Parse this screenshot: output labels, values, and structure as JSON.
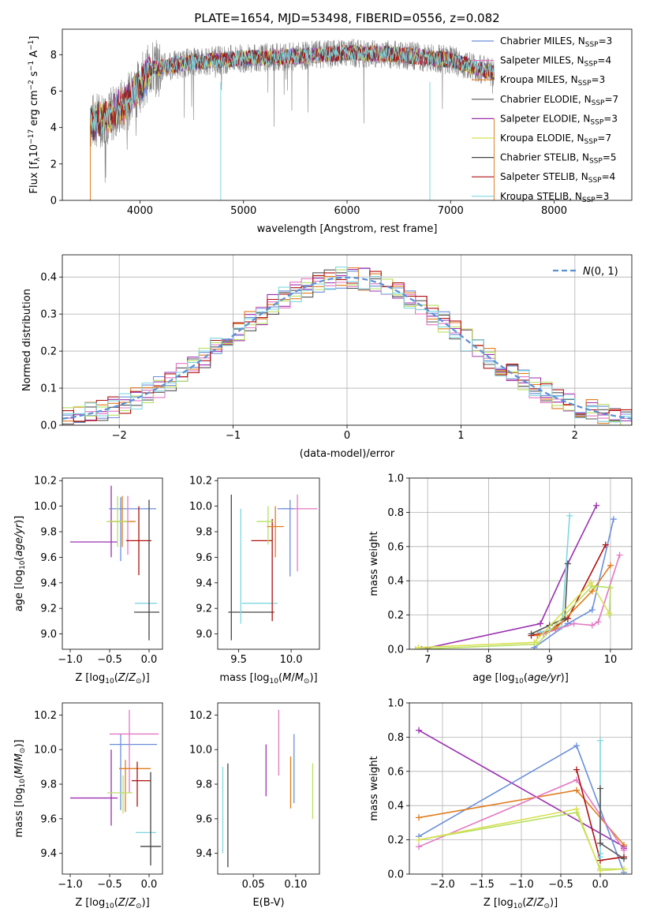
{
  "title": "PLATE=1654, MJD=53498, FIBERID=0556, z=0.082",
  "colors": [
    "#6a8fdb",
    "#9b30b0",
    "#e07c1e",
    "#555555",
    "#9b30b0",
    "#b8e060",
    "#555555",
    "#b01010",
    "#7fd6e0"
  ],
  "chart_data": [
    {
      "name": "spectrum",
      "type": "line",
      "xlabel": "wavelength [Angstrom, rest frame]",
      "ylabel": "Flux [f_λ 10^-17 erg cm^-2 s^-1 A^-1]",
      "xlim": [
        3250,
        8750
      ],
      "ylim": [
        0,
        9.4
      ],
      "xticks": [
        4000,
        5000,
        6000,
        7000,
        8000
      ],
      "yticks": [
        0,
        2,
        4,
        6,
        8
      ],
      "grid": false,
      "legend_position": "right",
      "legend": [
        {
          "label": "Chabrier MILES, N",
          "sub": "SSP",
          "eq": "=3",
          "color": "#6a8fdb"
        },
        {
          "label": "Salpeter MILES, N",
          "sub": "SSP",
          "eq": "=4",
          "color": "#e377c2"
        },
        {
          "label": "Kroupa MILES, N",
          "sub": "SSP",
          "eq": "=3",
          "color": "#e07c1e"
        },
        {
          "label": "Chabrier ELODIE, N",
          "sub": "SSP",
          "eq": "=7",
          "color": "#555555"
        },
        {
          "label": "Salpeter ELODIE, N",
          "sub": "SSP",
          "eq": "=3",
          "color": "#9b30b0"
        },
        {
          "label": "Kroupa ELODIE, N",
          "sub": "SSP",
          "eq": "=7",
          "color": "#d8e050"
        },
        {
          "label": "Chabrier STELIB, N",
          "sub": "SSP",
          "eq": "=5",
          "color": "#444444"
        },
        {
          "label": "Salpeter STELIB, N",
          "sub": "SSP",
          "eq": "=4",
          "color": "#b01010"
        },
        {
          "label": "Kroupa STELIB, N",
          "sub": "SSP",
          "eq": "=3",
          "color": "#7fd6e0"
        }
      ],
      "data_range": [
        3520,
        7420
      ],
      "continuum": [
        [
          3520,
          4.3
        ],
        [
          3700,
          4.6
        ],
        [
          3900,
          5.5
        ],
        [
          4100,
          7.2
        ],
        [
          4500,
          7.6
        ],
        [
          5000,
          7.8
        ],
        [
          5500,
          7.9
        ],
        [
          6000,
          8.1
        ],
        [
          6500,
          8.0
        ],
        [
          7000,
          7.7
        ],
        [
          7420,
          7.0
        ]
      ]
    },
    {
      "name": "residuals",
      "type": "histogram",
      "xlabel": "(data-model)/error",
      "ylabel": "Normed distribution",
      "xlim": [
        -2.5,
        2.5
      ],
      "ylim": [
        0,
        0.46
      ],
      "xticks": [
        -2,
        -1,
        0,
        1,
        2
      ],
      "yticks": [
        0.0,
        0.1,
        0.2,
        0.3,
        0.4
      ],
      "grid": true,
      "legend_position": "top-right",
      "legend": "N(0,1)",
      "bin_width": 0.1,
      "colors": [
        "#6a8fdb",
        "#9b30b0",
        "#e07c1e",
        "#555555",
        "#e377c2",
        "#b8e060",
        "#b01010",
        "#7fd6e0"
      ]
    },
    {
      "name": "age_vs_Z",
      "type": "errorbar",
      "xlabel": "Z [log10(Z/Z⊙)]",
      "ylabel": "age  [log10(age/yr)]",
      "xlim": [
        -1.1,
        0.17
      ],
      "ylim": [
        8.88,
        10.22
      ],
      "xticks": [
        -1.0,
        -0.5,
        0.0
      ],
      "yticks": [
        9.0,
        9.2,
        9.4,
        9.6,
        9.8,
        10.0,
        10.2
      ],
      "points": [
        {
          "x": -0.7,
          "xerr": 0.3,
          "y": 9.72,
          "yerr": 0.0,
          "color": "#9b30b0"
        },
        {
          "x": -0.48,
          "xerr": 0.0,
          "y": 9.88,
          "yerr": 0.28,
          "color": "#9b30b0"
        },
        {
          "x": -0.21,
          "xerr": 0.3,
          "y": 9.98,
          "yerr": 0.0,
          "color": "#6a8fdb"
        },
        {
          "x": -0.36,
          "xerr": 0.0,
          "y": 9.82,
          "yerr": 0.25,
          "color": "#6a8fdb"
        },
        {
          "x": -0.34,
          "xerr": 0.17,
          "y": 9.88,
          "yerr": 0.2,
          "color": "#e07c1e"
        },
        {
          "x": -0.4,
          "xerr": 0.14,
          "y": 9.88,
          "yerr": 0.2,
          "color": "#b8e060"
        },
        {
          "x": -0.27,
          "xerr": 0.0,
          "y": 9.85,
          "yerr": 0.23,
          "color": "#e377c2"
        },
        {
          "x": -0.13,
          "xerr": 0.16,
          "y": 9.73,
          "yerr": 0.27,
          "color": "#b01010"
        },
        {
          "x": -0.04,
          "xerr": 0.14,
          "y": 9.24,
          "yerr": 0.0,
          "color": "#7fd6e0"
        },
        {
          "x": 0.0,
          "xerr": 0.0,
          "y": 9.5,
          "yerr": 0.55,
          "color": "#444444"
        },
        {
          "x": -0.03,
          "xerr": 0.16,
          "y": 9.17,
          "yerr": 0.0,
          "color": "#444444"
        }
      ]
    },
    {
      "name": "age_vs_mass",
      "type": "errorbar",
      "xlabel": "mass [log10(M/M⊙)]",
      "xlim": [
        9.3,
        10.27
      ],
      "ylim": [
        8.88,
        10.22
      ],
      "xticks": [
        9.5,
        10.0
      ],
      "yticks": [
        9.0,
        9.2,
        9.4,
        9.6,
        9.8,
        10.0,
        10.2
      ],
      "points": [
        {
          "x": 9.43,
          "xerr": 0.0,
          "y": 9.52,
          "yerr": 0.57,
          "color": "#444444"
        },
        {
          "x": 9.62,
          "xerr": 0.22,
          "y": 9.17,
          "yerr": 0.0,
          "color": "#444444"
        },
        {
          "x": 9.52,
          "xerr": 0.0,
          "y": 9.53,
          "yerr": 0.45,
          "color": "#7fd6e0"
        },
        {
          "x": 9.7,
          "xerr": 0.17,
          "y": 9.24,
          "yerr": 0.0,
          "color": "#7fd6e0"
        },
        {
          "x": 9.82,
          "xerr": 0.0,
          "y": 9.5,
          "yerr": 0.4,
          "color": "#b01010"
        },
        {
          "x": 9.72,
          "xerr": 0.1,
          "y": 9.73,
          "yerr": 0.0,
          "color": "#b01010"
        },
        {
          "x": 9.75,
          "xerr": 0.08,
          "y": 9.88,
          "yerr": 0.0,
          "color": "#b8e060"
        },
        {
          "x": 9.78,
          "xerr": 0.0,
          "y": 9.85,
          "yerr": 0.15,
          "color": "#b8e060"
        },
        {
          "x": 9.85,
          "xerr": 0.08,
          "y": 9.84,
          "yerr": 0.0,
          "color": "#e07c1e"
        },
        {
          "x": 9.85,
          "xerr": 0.0,
          "y": 9.8,
          "yerr": 0.2,
          "color": "#e07c1e"
        },
        {
          "x": 9.99,
          "xerr": 0.0,
          "y": 9.75,
          "yerr": 0.3,
          "color": "#6a8fdb"
        },
        {
          "x": 10.06,
          "xerr": 0.0,
          "y": 9.79,
          "yerr": 0.3,
          "color": "#e377c2"
        },
        {
          "x": 10.08,
          "xerr": 0.17,
          "y": 9.98,
          "yerr": 0.0,
          "color": "#e377c2"
        },
        {
          "x": 9.95,
          "xerr": 0.08,
          "y": 9.98,
          "yerr": 0.0,
          "color": "#6a8fdb"
        }
      ]
    },
    {
      "name": "weights_vs_age",
      "type": "line",
      "xlabel": "age  [log10(age/yr)]",
      "ylabel": "mass weight",
      "xlim": [
        6.7,
        10.35
      ],
      "ylim": [
        0,
        1.0
      ],
      "xticks": [
        7,
        8,
        9,
        10
      ],
      "yticks": [
        0.0,
        0.2,
        0.4,
        0.6,
        0.8,
        1.0
      ],
      "grid": true,
      "series": [
        {
          "color": "#9b30b0",
          "x": [
            6.9,
            8.85,
            9.3,
            9.77
          ],
          "y": [
            0.0,
            0.15,
            0.5,
            0.84
          ]
        },
        {
          "color": "#6a8fdb",
          "x": [
            8.75,
            9.3,
            9.7,
            10.05
          ],
          "y": [
            0.01,
            0.15,
            0.23,
            0.76
          ]
        },
        {
          "color": "#b01010",
          "x": [
            8.7,
            8.95,
            9.3,
            9.92
          ],
          "y": [
            0.08,
            0.1,
            0.18,
            0.61
          ]
        },
        {
          "color": "#7fd6e0",
          "x": [
            8.85,
            9.2,
            9.33
          ],
          "y": [
            0.1,
            0.13,
            0.78
          ]
        },
        {
          "color": "#e07c1e",
          "x": [
            8.8,
            9.1,
            9.7,
            10.0
          ],
          "y": [
            0.08,
            0.12,
            0.34,
            0.49
          ]
        },
        {
          "color": "#e377c2",
          "x": [
            8.9,
            9.4,
            9.7,
            9.8,
            10.15
          ],
          "y": [
            0.09,
            0.15,
            0.14,
            0.16,
            0.55
          ]
        },
        {
          "color": "#555555",
          "x": [
            8.7,
            9.0,
            9.25,
            9.3
          ],
          "y": [
            0.09,
            0.14,
            0.18,
            0.5
          ]
        },
        {
          "color": "#b8e060",
          "x": [
            6.8,
            8.8,
            9.7,
            10.0,
            9.98
          ],
          "y": [
            0.0,
            0.03,
            0.37,
            0.36,
            0.2
          ]
        },
        {
          "color": "#d8e050",
          "x": [
            6.85,
            8.75,
            9.68,
            9.98
          ],
          "y": [
            0.01,
            0.04,
            0.39,
            0.21
          ]
        }
      ]
    },
    {
      "name": "mass_vs_Z",
      "type": "errorbar",
      "xlabel": "Z [log10(Z/Z⊙)]",
      "ylabel": "mass [log10(M/M⊙)]",
      "xlim": [
        -1.1,
        0.17
      ],
      "ylim": [
        9.28,
        10.27
      ],
      "xticks": [
        -1.0,
        -0.5,
        0.0
      ],
      "yticks": [
        9.4,
        9.6,
        9.8,
        10.0,
        10.2
      ],
      "points": [
        {
          "x": -0.7,
          "xerr": 0.3,
          "y": 9.72,
          "yerr": 0.0,
          "color": "#9b30b0"
        },
        {
          "x": -0.48,
          "xerr": 0.0,
          "y": 9.78,
          "yerr": 0.22,
          "color": "#9b30b0"
        },
        {
          "x": -0.2,
          "xerr": 0.3,
          "y": 10.03,
          "yerr": 0.0,
          "color": "#6a8fdb"
        },
        {
          "x": -0.36,
          "xerr": 0.0,
          "y": 9.87,
          "yerr": 0.22,
          "color": "#6a8fdb"
        },
        {
          "x": -0.19,
          "xerr": 0.31,
          "y": 10.09,
          "yerr": 0.0,
          "color": "#e377c2"
        },
        {
          "x": -0.25,
          "xerr": 0.0,
          "y": 9.99,
          "yerr": 0.24,
          "color": "#e377c2"
        },
        {
          "x": -0.18,
          "xerr": 0.2,
          "y": 9.89,
          "yerr": 0.0,
          "color": "#e07c1e"
        },
        {
          "x": -0.3,
          "xerr": 0.0,
          "y": 9.79,
          "yerr": 0.15,
          "color": "#e07c1e"
        },
        {
          "x": -0.37,
          "xerr": 0.16,
          "y": 9.75,
          "yerr": 0.0,
          "color": "#b8e060"
        },
        {
          "x": -0.33,
          "xerr": 0.0,
          "y": 9.74,
          "yerr": 0.11,
          "color": "#b8e060"
        },
        {
          "x": -0.1,
          "xerr": 0.12,
          "y": 9.82,
          "yerr": 0.0,
          "color": "#b01010"
        },
        {
          "x": -0.15,
          "xerr": 0.0,
          "y": 9.8,
          "yerr": 0.13,
          "color": "#b01010"
        },
        {
          "x": -0.04,
          "xerr": 0.13,
          "y": 9.52,
          "yerr": 0.0,
          "color": "#7fd6e0"
        },
        {
          "x": 0.02,
          "xerr": 0.13,
          "y": 9.44,
          "yerr": 0.0,
          "color": "#444444"
        },
        {
          "x": 0.02,
          "xerr": 0.0,
          "y": 9.6,
          "yerr": 0.27,
          "color": "#444444"
        }
      ]
    },
    {
      "name": "mass_vs_EBV",
      "type": "errorbar",
      "xlabel": "E(B-V)",
      "xlim": [
        0.008,
        0.128
      ],
      "ylim": [
        9.28,
        10.27
      ],
      "xticks": [
        0.05,
        0.1
      ],
      "yticks": [
        9.4,
        9.6,
        9.8,
        10.0,
        10.2
      ],
      "points": [
        {
          "x": 0.014,
          "xerr": 0.0,
          "y": 9.65,
          "yerr": 0.25,
          "color": "#7fd6e0"
        },
        {
          "x": 0.02,
          "xerr": 0.0,
          "y": 9.62,
          "yerr": 0.3,
          "color": "#444444"
        },
        {
          "x": 0.065,
          "xerr": 0.0,
          "y": 9.88,
          "yerr": 0.15,
          "color": "#9b30b0"
        },
        {
          "x": 0.08,
          "xerr": 0.0,
          "y": 10.04,
          "yerr": 0.19,
          "color": "#e377c2"
        },
        {
          "x": 0.094,
          "xerr": 0.0,
          "y": 9.81,
          "yerr": 0.15,
          "color": "#e07c1e"
        },
        {
          "x": 0.098,
          "xerr": 0.0,
          "y": 9.89,
          "yerr": 0.2,
          "color": "#6a8fdb"
        },
        {
          "x": 0.12,
          "xerr": 0.0,
          "y": 9.76,
          "yerr": 0.16,
          "color": "#b8e060"
        }
      ]
    },
    {
      "name": "weights_vs_Z",
      "type": "line",
      "xlabel": "Z [log10(Z/Z⊙)]",
      "ylabel": "mass weight",
      "xlim": [
        -2.42,
        0.4
      ],
      "ylim": [
        0,
        1.0
      ],
      "xticks": [
        -2.0,
        -1.5,
        -1.0,
        -0.5,
        0.0
      ],
      "yticks": [
        0.0,
        0.2,
        0.4,
        0.6,
        0.8,
        1.0
      ],
      "grid": true,
      "series": [
        {
          "color": "#9b30b0",
          "x": [
            -2.3,
            0.3,
            0.3
          ],
          "y": [
            0.84,
            0.16,
            0.15
          ]
        },
        {
          "color": "#6a8fdb",
          "x": [
            -2.3,
            -0.3,
            0.3
          ],
          "y": [
            0.22,
            0.75,
            0.01
          ]
        },
        {
          "color": "#e07c1e",
          "x": [
            -2.3,
            -0.3,
            0.3
          ],
          "y": [
            0.33,
            0.49,
            0.17
          ]
        },
        {
          "color": "#e377c2",
          "x": [
            -2.3,
            -0.3,
            0.3
          ],
          "y": [
            0.16,
            0.55,
            0.14
          ]
        },
        {
          "color": "#b01010",
          "x": [
            -0.3,
            0.0,
            0.3
          ],
          "y": [
            0.61,
            0.08,
            0.1
          ]
        },
        {
          "color": "#b8e060",
          "x": [
            -2.3,
            -0.3,
            0.0,
            0.3
          ],
          "y": [
            0.2,
            0.36,
            0.03,
            0.03
          ]
        },
        {
          "color": "#d8e050",
          "x": [
            -2.3,
            -0.3,
            0.0,
            0.3
          ],
          "y": [
            0.2,
            0.38,
            0.02,
            0.03
          ]
        },
        {
          "color": "#7fd6e0",
          "x": [
            0.0,
            0.0,
            0.0
          ],
          "y": [
            0.78,
            0.1,
            0.12
          ]
        },
        {
          "color": "#555555",
          "x": [
            0.0,
            0.0,
            0.3
          ],
          "y": [
            0.5,
            0.18,
            0.09
          ]
        }
      ]
    }
  ]
}
